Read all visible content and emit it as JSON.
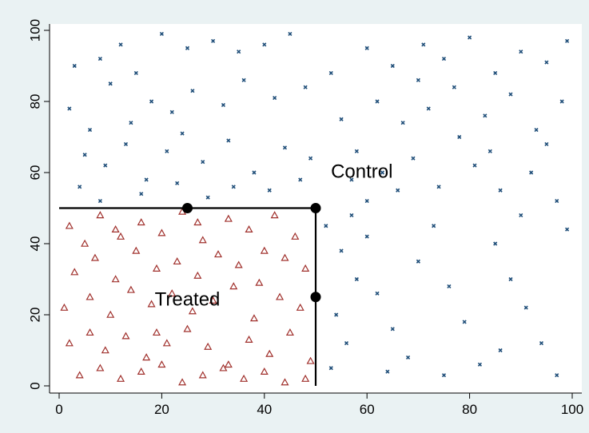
{
  "chart_data": {
    "type": "scatter",
    "title": "",
    "xlabel": "",
    "ylabel": "",
    "xlim": [
      0,
      100
    ],
    "ylim": [
      0,
      100
    ],
    "x_ticks": [
      0,
      20,
      40,
      60,
      80,
      100
    ],
    "y_ticks": [
      0,
      20,
      40,
      60,
      80,
      100
    ],
    "grid": false,
    "series": [
      {
        "name": "Control",
        "marker": "x",
        "color": "#1f4e79",
        "points": [
          [
            8,
            92
          ],
          [
            12,
            96
          ],
          [
            15,
            88
          ],
          [
            3,
            90
          ],
          [
            20,
            99
          ],
          [
            25,
            95
          ],
          [
            30,
            97
          ],
          [
            35,
            94
          ],
          [
            40,
            96
          ],
          [
            45,
            99
          ],
          [
            2,
            78
          ],
          [
            6,
            72
          ],
          [
            10,
            85
          ],
          [
            14,
            74
          ],
          [
            18,
            80
          ],
          [
            22,
            77
          ],
          [
            26,
            83
          ],
          [
            32,
            79
          ],
          [
            36,
            86
          ],
          [
            42,
            81
          ],
          [
            48,
            84
          ],
          [
            5,
            65
          ],
          [
            9,
            62
          ],
          [
            13,
            68
          ],
          [
            17,
            58
          ],
          [
            21,
            66
          ],
          [
            24,
            71
          ],
          [
            28,
            63
          ],
          [
            33,
            69
          ],
          [
            38,
            60
          ],
          [
            44,
            67
          ],
          [
            49,
            64
          ],
          [
            4,
            56
          ],
          [
            8,
            52
          ],
          [
            16,
            54
          ],
          [
            23,
            57
          ],
          [
            29,
            53
          ],
          [
            34,
            56
          ],
          [
            41,
            55
          ],
          [
            47,
            58
          ],
          [
            52,
            45
          ],
          [
            55,
            38
          ],
          [
            58,
            30
          ],
          [
            54,
            20
          ],
          [
            56,
            12
          ],
          [
            53,
            5
          ],
          [
            57,
            48
          ],
          [
            60,
            42
          ],
          [
            62,
            26
          ],
          [
            65,
            16
          ],
          [
            68,
            8
          ],
          [
            70,
            35
          ],
          [
            73,
            45
          ],
          [
            76,
            28
          ],
          [
            79,
            18
          ],
          [
            82,
            6
          ],
          [
            85,
            40
          ],
          [
            88,
            30
          ],
          [
            91,
            22
          ],
          [
            94,
            12
          ],
          [
            97,
            3
          ],
          [
            99,
            44
          ],
          [
            86,
            10
          ],
          [
            75,
            3
          ],
          [
            64,
            4
          ],
          [
            90,
            48
          ],
          [
            60,
            95
          ],
          [
            65,
            90
          ],
          [
            70,
            86
          ],
          [
            75,
            92
          ],
          [
            80,
            98
          ],
          [
            85,
            88
          ],
          [
            90,
            94
          ],
          [
            95,
            91
          ],
          [
            99,
            97
          ],
          [
            62,
            80
          ],
          [
            67,
            74
          ],
          [
            72,
            78
          ],
          [
            78,
            70
          ],
          [
            83,
            76
          ],
          [
            88,
            82
          ],
          [
            93,
            72
          ],
          [
            98,
            80
          ],
          [
            58,
            66
          ],
          [
            63,
            60
          ],
          [
            69,
            64
          ],
          [
            74,
            56
          ],
          [
            81,
            62
          ],
          [
            86,
            55
          ],
          [
            92,
            60
          ],
          [
            97,
            52
          ],
          [
            55,
            75
          ],
          [
            60,
            52
          ],
          [
            66,
            55
          ],
          [
            77,
            84
          ],
          [
            84,
            66
          ],
          [
            95,
            68
          ],
          [
            53,
            88
          ],
          [
            57,
            58
          ],
          [
            71,
            96
          ]
        ]
      },
      {
        "name": "Treated",
        "marker": "triangle",
        "color": "#a0302c",
        "points": [
          [
            2,
            45
          ],
          [
            5,
            40
          ],
          [
            8,
            48
          ],
          [
            12,
            42
          ],
          [
            16,
            46
          ],
          [
            20,
            43
          ],
          [
            24,
            49
          ],
          [
            28,
            41
          ],
          [
            33,
            47
          ],
          [
            37,
            44
          ],
          [
            42,
            48
          ],
          [
            46,
            42
          ],
          [
            3,
            32
          ],
          [
            7,
            36
          ],
          [
            11,
            30
          ],
          [
            15,
            38
          ],
          [
            19,
            33
          ],
          [
            23,
            35
          ],
          [
            27,
            31
          ],
          [
            31,
            37
          ],
          [
            35,
            34
          ],
          [
            39,
            29
          ],
          [
            44,
            36
          ],
          [
            48,
            33
          ],
          [
            1,
            22
          ],
          [
            6,
            25
          ],
          [
            10,
            20
          ],
          [
            14,
            27
          ],
          [
            18,
            23
          ],
          [
            22,
            26
          ],
          [
            26,
            21
          ],
          [
            30,
            24
          ],
          [
            34,
            28
          ],
          [
            38,
            19
          ],
          [
            43,
            25
          ],
          [
            47,
            22
          ],
          [
            2,
            12
          ],
          [
            6,
            15
          ],
          [
            9,
            10
          ],
          [
            13,
            14
          ],
          [
            17,
            8
          ],
          [
            21,
            12
          ],
          [
            25,
            16
          ],
          [
            29,
            11
          ],
          [
            33,
            6
          ],
          [
            37,
            13
          ],
          [
            41,
            9
          ],
          [
            45,
            15
          ],
          [
            49,
            7
          ],
          [
            4,
            3
          ],
          [
            8,
            5
          ],
          [
            12,
            2
          ],
          [
            16,
            4
          ],
          [
            20,
            6
          ],
          [
            24,
            1
          ],
          [
            28,
            3
          ],
          [
            32,
            5
          ],
          [
            36,
            2
          ],
          [
            40,
            4
          ],
          [
            44,
            1
          ],
          [
            48,
            2
          ],
          [
            11,
            44
          ],
          [
            27,
            46
          ],
          [
            40,
            38
          ],
          [
            19,
            15
          ]
        ]
      }
    ],
    "boundary": {
      "segments": [
        [
          [
            0,
            50
          ],
          [
            50,
            50
          ]
        ],
        [
          [
            50,
            50
          ],
          [
            50,
            0
          ]
        ]
      ],
      "points": [
        [
          25,
          50
        ],
        [
          50,
          50
        ],
        [
          50,
          25
        ]
      ]
    },
    "annotations": [
      {
        "text": "Control",
        "x": 59,
        "y": 60
      },
      {
        "text": "Treated",
        "x": 25,
        "y": 24
      }
    ]
  }
}
